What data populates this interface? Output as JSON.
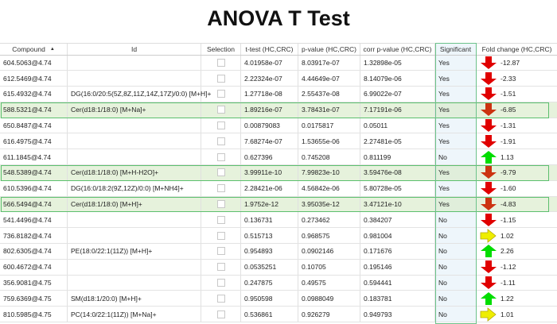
{
  "title": "ANOVA T Test",
  "columns": [
    "Compound",
    "Id",
    "Selection",
    "t-test (HC,CRC)",
    "p-value (HC,CRC)",
    "corr p-value (HC,CRC)",
    "Significant",
    "Fold change (HC,CRC)"
  ],
  "sort_indicator": "▲",
  "colors": {
    "down": "#e00000",
    "down_highlighted": "#cc3311",
    "up": "#00dd00",
    "neutral": "#eeee00",
    "highlight": "#e6f2dc",
    "highlight_border": "#5cbf6e"
  },
  "rows": [
    {
      "compound": "604.5063@4.74",
      "id": "",
      "t": "4.01958e-07",
      "p": "8.03917e-07",
      "corr": "1.32898e-05",
      "sig": "Yes",
      "fc": "-12.87",
      "dir": "down",
      "hl": false
    },
    {
      "compound": "612.5469@4.74",
      "id": "",
      "t": "2.22324e-07",
      "p": "4.44649e-07",
      "corr": "8.14079e-06",
      "sig": "Yes",
      "fc": "-2.33",
      "dir": "down",
      "hl": false
    },
    {
      "compound": "615.4932@4.74",
      "id": "DG(16:0/20:5(5Z,8Z,11Z,14Z,17Z)/0:0) [M+H]+",
      "t": "1.27718e-08",
      "p": "2.55437e-08",
      "corr": "6.99022e-07",
      "sig": "Yes",
      "fc": "-1.51",
      "dir": "down",
      "hl": false
    },
    {
      "compound": "588.5321@4.74",
      "id": "Cer(d18:1/18:0) [M+Na]+",
      "t": "1.89216e-07",
      "p": "3.78431e-07",
      "corr": "7.17191e-06",
      "sig": "Yes",
      "fc": "-6.85",
      "dir": "down",
      "hl": true
    },
    {
      "compound": "650.8487@4.74",
      "id": "",
      "t": "0.00879083",
      "p": "0.0175817",
      "corr": "0.05011",
      "sig": "Yes",
      "fc": "-1.31",
      "dir": "down",
      "hl": false
    },
    {
      "compound": "616.4975@4.74",
      "id": "",
      "t": "7.68274e-07",
      "p": "1.53655e-06",
      "corr": "2.27481e-05",
      "sig": "Yes",
      "fc": "-1.91",
      "dir": "down",
      "hl": false
    },
    {
      "compound": "611.1845@4.74",
      "id": "",
      "t": "0.627396",
      "p": "0.745208",
      "corr": "0.811199",
      "sig": "No",
      "fc": "1.13",
      "dir": "up",
      "hl": false
    },
    {
      "compound": "548.5389@4.74",
      "id": "Cer(d18:1/18:0) [M+H-H2O]+",
      "t": "3.99911e-10",
      "p": "7.99823e-10",
      "corr": "3.59476e-08",
      "sig": "Yes",
      "fc": "-9.79",
      "dir": "down",
      "hl": true
    },
    {
      "compound": "610.5396@4.74",
      "id": "DG(16:0/18:2(9Z,12Z)/0:0) [M+NH4]+",
      "t": "2.28421e-06",
      "p": "4.56842e-06",
      "corr": "5.80728e-05",
      "sig": "Yes",
      "fc": "-1.60",
      "dir": "down",
      "hl": false
    },
    {
      "compound": "566.5494@4.74",
      "id": "Cer(d18:1/18:0) [M+H]+",
      "t": "1.9752e-12",
      "p": "3.95035e-12",
      "corr": "3.47121e-10",
      "sig": "Yes",
      "fc": "-4.83",
      "dir": "down",
      "hl": true
    },
    {
      "compound": "541.4496@4.74",
      "id": "",
      "t": "0.136731",
      "p": "0.273462",
      "corr": "0.384207",
      "sig": "No",
      "fc": "-1.15",
      "dir": "down",
      "hl": false
    },
    {
      "compound": "736.8182@4.74",
      "id": "",
      "t": "0.515713",
      "p": "0.968575",
      "corr": "0.981004",
      "sig": "No",
      "fc": "1.02",
      "dir": "right",
      "hl": false
    },
    {
      "compound": "802.6305@4.74",
      "id": "PE(18:0/22:1(11Z)) [M+H]+",
      "t": "0.954893",
      "p": "0.0902146",
      "corr": "0.171676",
      "sig": "No",
      "fc": "2.26",
      "dir": "up",
      "hl": false
    },
    {
      "compound": "600.4672@4.74",
      "id": "",
      "t": "0.0535251",
      "p": "0.10705",
      "corr": "0.195146",
      "sig": "No",
      "fc": "-1.12",
      "dir": "down",
      "hl": false
    },
    {
      "compound": "356.9081@4.75",
      "id": "",
      "t": "0.247875",
      "p": "0.49575",
      "corr": "0.594441",
      "sig": "No",
      "fc": "-1.11",
      "dir": "down",
      "hl": false
    },
    {
      "compound": "759.6369@4.75",
      "id": "SM(d18:1/20:0) [M+H]+",
      "t": "0.950598",
      "p": "0.0988049",
      "corr": "0.183781",
      "sig": "No",
      "fc": "1.22",
      "dir": "up",
      "hl": false
    },
    {
      "compound": "810.5985@4.75",
      "id": "PC(14:0/22:1(11Z)) [M+Na]+",
      "t": "0.536861",
      "p": "0.926279",
      "corr": "0.949793",
      "sig": "No",
      "fc": "1.01",
      "dir": "right",
      "hl": false
    }
  ]
}
